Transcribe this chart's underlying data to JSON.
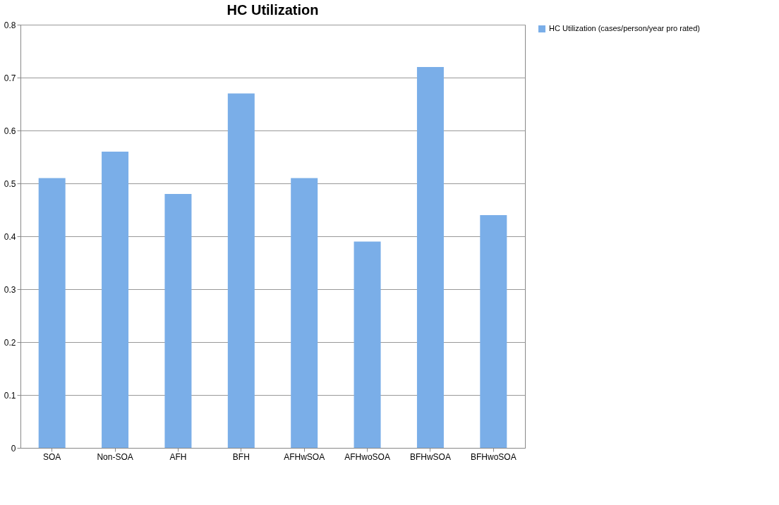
{
  "chart_data": {
    "type": "bar",
    "title": "HC Utilization",
    "categories": [
      "SOA",
      "Non-SOA",
      "AFH",
      "BFH",
      "AFHwSOA",
      "AFHwoSOA",
      "BFHwSOA",
      "BFHwoSOA"
    ],
    "series": [
      {
        "name": "HC Utilization (cases/person/year pro rated)",
        "color": "#7aaee8",
        "values": [
          0.51,
          0.56,
          0.48,
          0.67,
          0.51,
          0.39,
          0.72,
          0.44
        ]
      }
    ],
    "ylim": [
      0,
      0.8
    ],
    "yticks": [
      0,
      0.1,
      0.2,
      0.3,
      0.4,
      0.5,
      0.6,
      0.7,
      0.8
    ],
    "grid": "y",
    "legend": "right"
  }
}
